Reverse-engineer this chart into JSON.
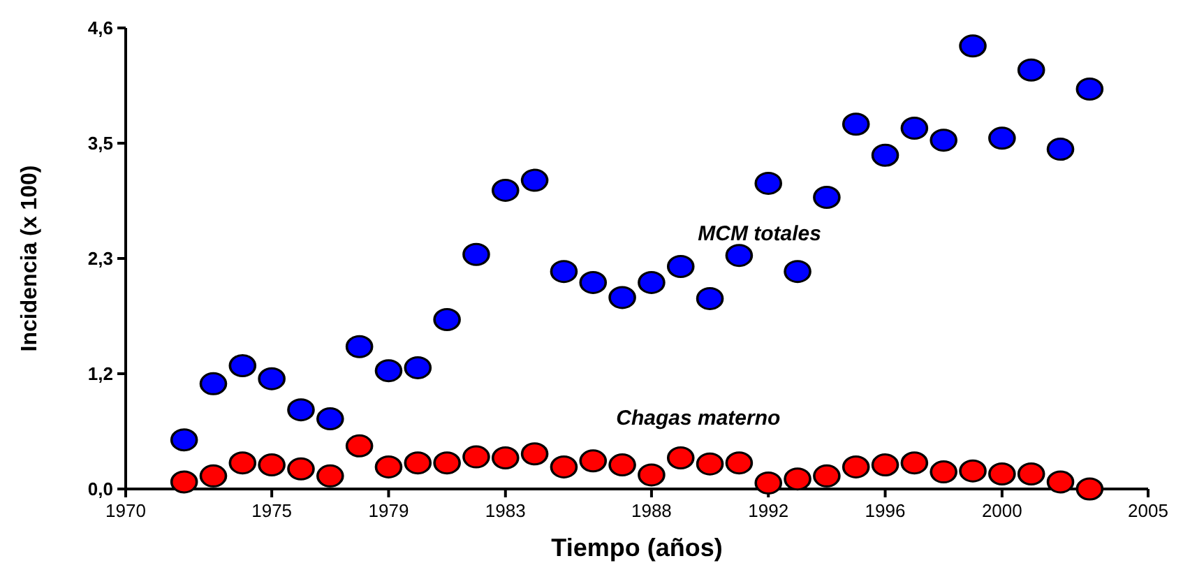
{
  "chart_data": {
    "type": "scatter",
    "xlabel": "Tiempo (años)",
    "ylabel": "Incidencia (x 100)",
    "x": [
      1972,
      1973,
      1974,
      1975,
      1976,
      1977,
      1978,
      1979,
      1980,
      1981,
      1982,
      1983,
      1984,
      1985,
      1986,
      1987,
      1988,
      1989,
      1990,
      1991,
      1992,
      1993,
      1994,
      1995,
      1996,
      1997,
      1998,
      1999,
      2000,
      2001,
      2002,
      2003
    ],
    "series": [
      {
        "name": "MCM totales",
        "color": "#0000ff",
        "values": [
          0.49,
          1.05,
          1.23,
          1.1,
          0.79,
          0.7,
          1.42,
          1.18,
          1.21,
          1.69,
          2.34,
          2.98,
          3.08,
          2.17,
          2.06,
          1.91,
          2.06,
          2.22,
          1.9,
          2.33,
          3.05,
          2.17,
          2.91,
          3.64,
          3.33,
          3.6,
          3.48,
          4.42,
          3.5,
          4.18,
          3.39,
          3.99
        ]
      },
      {
        "name": "Chagas materno",
        "color": "#ff0000",
        "values": [
          0.07,
          0.13,
          0.26,
          0.24,
          0.2,
          0.13,
          0.43,
          0.22,
          0.26,
          0.26,
          0.32,
          0.31,
          0.35,
          0.22,
          0.28,
          0.24,
          0.14,
          0.31,
          0.25,
          0.26,
          0.06,
          0.1,
          0.13,
          0.22,
          0.24,
          0.26,
          0.17,
          0.18,
          0.15,
          0.15,
          0.07,
          0.0
        ]
      }
    ],
    "xlim": [
      1970,
      2005
    ],
    "xticks": [
      1970,
      1975,
      1979,
      1983,
      1988,
      1992,
      1996,
      2000,
      2005
    ],
    "ylim": [
      0,
      4.6
    ],
    "yticks": [
      {
        "value": 0,
        "label": "0,0"
      },
      {
        "value": 1.15,
        "label": "1,2"
      },
      {
        "value": 2.3,
        "label": "2,3"
      },
      {
        "value": 3.45,
        "label": "3,5"
      },
      {
        "value": 4.6,
        "label": "4,6"
      }
    ],
    "marker": "circle",
    "legend": false,
    "grid": false
  }
}
